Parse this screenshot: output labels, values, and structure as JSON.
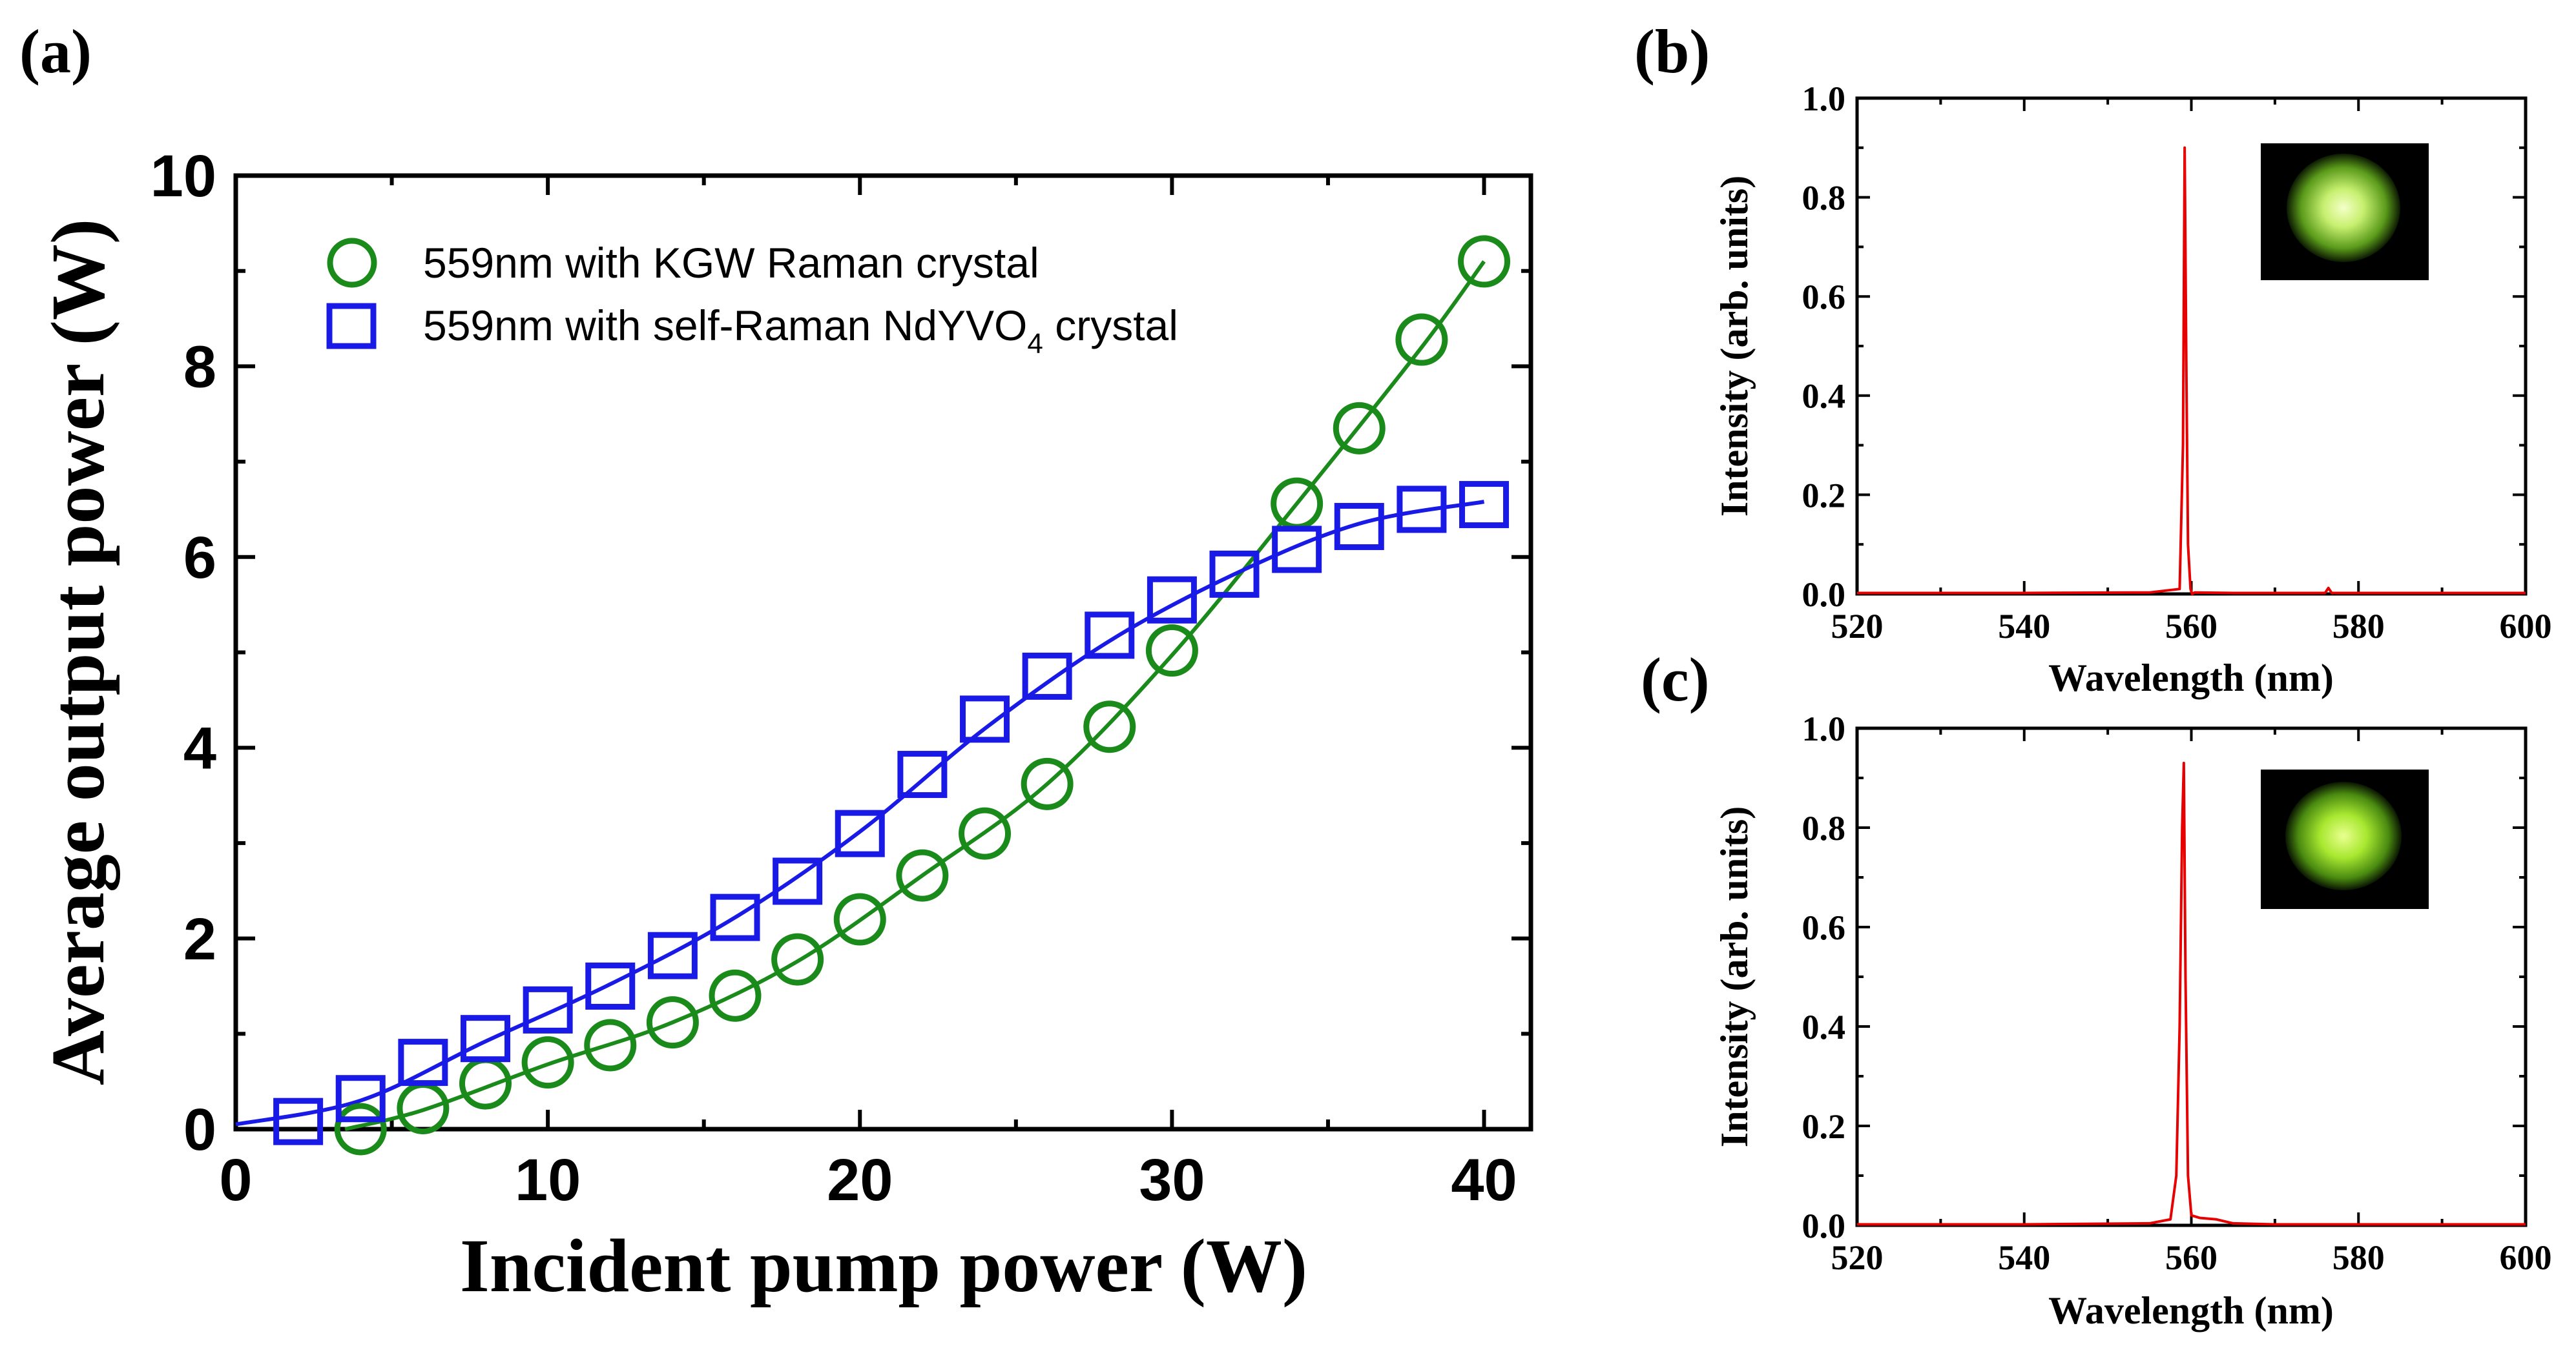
{
  "chart_data": [
    {
      "panel": "(a)",
      "type": "line",
      "title": "",
      "xlabel": "Incident pump power (W)",
      "ylabel": "Average output power (W)",
      "xlim": [
        0,
        41.5
      ],
      "ylim": [
        0,
        10
      ],
      "xticks": [
        "0",
        "10",
        "20",
        "30",
        "40"
      ],
      "yticks": [
        "0",
        "2",
        "4",
        "6",
        "8",
        "10"
      ],
      "grid": false,
      "legend_position": "top-left",
      "series": [
        {
          "name": "559nm with KGW Raman crystal",
          "color": "#1a8a1a",
          "marker": "circle",
          "x": [
            4,
            6,
            8,
            10,
            12,
            14,
            16,
            18,
            20,
            22,
            24,
            26,
            28,
            30,
            34,
            36,
            38,
            40
          ],
          "y": [
            0.0,
            0.22,
            0.48,
            0.7,
            0.88,
            1.12,
            1.4,
            1.78,
            2.2,
            2.66,
            3.1,
            3.62,
            4.22,
            5.02,
            6.56,
            7.35,
            8.28,
            9.1
          ]
        },
        {
          "name_prefix": "559nm with self-Raman NdYVO",
          "name_sub": "4",
          "name_suffix": " crystal",
          "name": "559nm with self-Raman NdYVO4 crystal",
          "color": "#1a1ae6",
          "marker": "square",
          "x": [
            2,
            4,
            6,
            8,
            10,
            12,
            14,
            16,
            18,
            20,
            22,
            24,
            26,
            28,
            30,
            32,
            34,
            36,
            38,
            40
          ],
          "y": [
            0.08,
            0.32,
            0.7,
            0.95,
            1.25,
            1.5,
            1.82,
            2.22,
            2.6,
            3.1,
            3.72,
            4.3,
            4.75,
            5.18,
            5.55,
            5.82,
            6.08,
            6.32,
            6.5,
            6.55
          ]
        }
      ],
      "fit_lines": [
        {
          "series": 0,
          "x": [
            3.5,
            6,
            10,
            14,
            18,
            22,
            26,
            30,
            34,
            38,
            40
          ],
          "y": [
            0.0,
            0.2,
            0.68,
            1.12,
            1.76,
            2.66,
            3.62,
            4.97,
            6.56,
            8.2,
            9.1
          ]
        },
        {
          "series": 1,
          "x": [
            0,
            4,
            8,
            12,
            16,
            20,
            24,
            28,
            32,
            36,
            40
          ],
          "y": [
            0.05,
            0.3,
            0.92,
            1.52,
            2.22,
            3.12,
            4.2,
            5.12,
            5.82,
            6.35,
            6.58
          ]
        }
      ]
    },
    {
      "panel": "(b)",
      "type": "line",
      "title": "",
      "xlabel": "Wavelength (nm)",
      "ylabel": "Intensity (arb. units)",
      "xlim": [
        520,
        600
      ],
      "ylim": [
        0,
        1.0
      ],
      "xticks": [
        "520",
        "540",
        "560",
        "580",
        "600"
      ],
      "yticks": [
        "0.0",
        "0.2",
        "0.4",
        "0.6",
        "0.8",
        "1.0"
      ],
      "grid": false,
      "inset": "green laser beam spot image",
      "series": [
        {
          "name": "spectrum",
          "color": "#e60000",
          "x": [
            520,
            540,
            555,
            558.6,
            559.0,
            559.2,
            559.4,
            559.6,
            559.9,
            560.1,
            560.4,
            565,
            576,
            576.4,
            576.8,
            590,
            600
          ],
          "y": [
            0.002,
            0.002,
            0.003,
            0.01,
            0.3,
            0.9,
            0.46,
            0.1,
            0.01,
            0.0,
            0.003,
            0.002,
            0.002,
            0.012,
            0.002,
            0.002,
            0.002
          ]
        }
      ]
    },
    {
      "panel": "(c)",
      "type": "line",
      "title": "",
      "xlabel": "Wavelength (nm)",
      "ylabel": "Intensity (arb. units)",
      "xlim": [
        520,
        600
      ],
      "ylim": [
        0,
        1.0
      ],
      "xticks": [
        "520",
        "540",
        "560",
        "580",
        "600"
      ],
      "yticks": [
        "0.0",
        "0.2",
        "0.4",
        "0.6",
        "0.8",
        "1.0"
      ],
      "grid": false,
      "inset": "green laser beam spot image",
      "series": [
        {
          "name": "spectrum",
          "color": "#e60000",
          "x": [
            520,
            540,
            555,
            557.5,
            558.2,
            558.6,
            558.9,
            559.1,
            559.3,
            559.6,
            560.0,
            561,
            563,
            565,
            570,
            600
          ],
          "y": [
            0.002,
            0.002,
            0.004,
            0.012,
            0.1,
            0.4,
            0.8,
            0.93,
            0.5,
            0.1,
            0.02,
            0.015,
            0.012,
            0.004,
            0.002,
            0.002
          ]
        }
      ]
    }
  ]
}
